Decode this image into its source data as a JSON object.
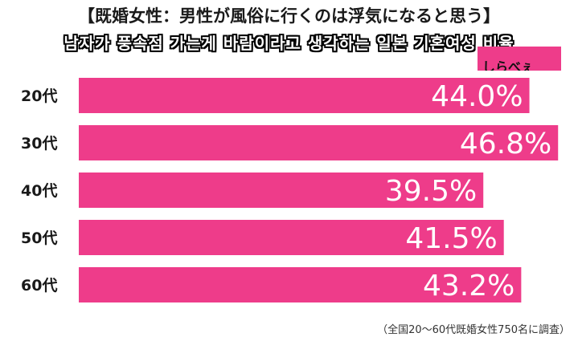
{
  "title": "【既婚女性：男性が風俗に行くのは浮気になると思う】",
  "subtitle": "남자가 풍속점 가는게 바람이라고 생각하는 일본 기혼여성 비율",
  "logo_text": "しらべぇ",
  "footnote": "（全国20～60代既婚女性750名に調査）",
  "chart_data": {
    "type": "bar",
    "orientation": "horizontal",
    "categories": [
      "20代",
      "30代",
      "40代",
      "50代",
      "60代"
    ],
    "values": [
      44.0,
      46.8,
      39.5,
      41.5,
      43.2
    ],
    "value_labels": [
      "44.0%",
      "46.8%",
      "39.5%",
      "41.5%",
      "43.2%"
    ],
    "bar_color": "#ee3c8a",
    "label_color": "#ffffff"
  }
}
